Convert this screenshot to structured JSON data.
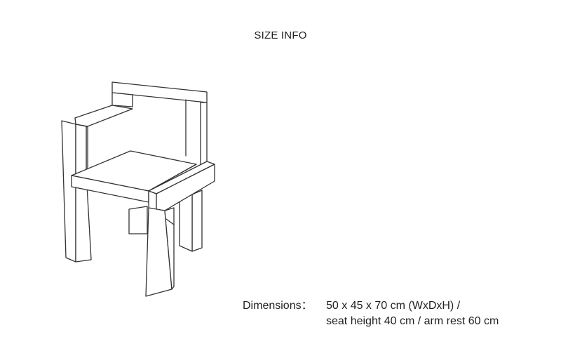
{
  "title": "SIZE INFO",
  "illustration": {
    "name": "chair-line-drawing",
    "stroke_color": "#333333"
  },
  "dimensions": {
    "label": "Dimensions：",
    "line1": "50 x 45 x 70 cm (WxDxH) /",
    "line2": "seat height 40 cm / arm rest 60 cm"
  }
}
